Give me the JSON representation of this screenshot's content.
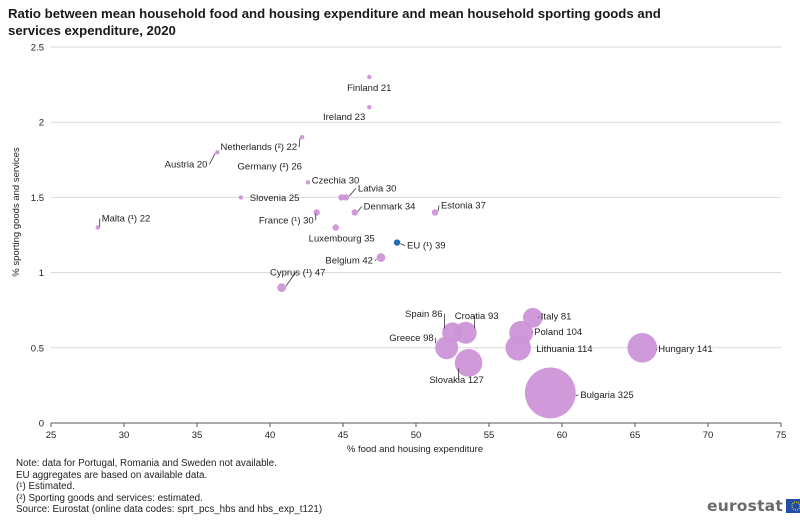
{
  "title": "Ratio between mean household food and housing expenditure and mean household sporting goods and services expenditure, 2020",
  "notes": [
    "Note: data for Portugal, Romania and Sweden not available.",
    "EU aggregates are based on available data.",
    "(¹) Estimated.",
    "(²) Sporting goods and services: estimated.",
    "Source: Eurostat (online data codes: sprt_pcs_hbs and hbs_exp_t121)"
  ],
  "logo_text": "eurostat",
  "colors": {
    "bubble": "#cd94d8",
    "eu": "#1f6cb3",
    "grid": "#d9d9d9",
    "axis": "#555555"
  },
  "chart_data": {
    "type": "scatter",
    "title": "Ratio between mean household food and housing expenditure and mean household sporting goods and services expenditure, 2020",
    "xlabel": "% food and housing expenditure",
    "ylabel": "% sporting goods and services",
    "xlim": [
      25,
      75
    ],
    "ylim": [
      0,
      2.5
    ],
    "xticks": [
      "25",
      "30",
      "35",
      "40",
      "45",
      "50",
      "55",
      "60",
      "65",
      "70",
      "75"
    ],
    "yticks": [
      "0",
      "0.5",
      "1",
      "1.5",
      "2",
      "2.5"
    ],
    "grid": "horizontal",
    "points": [
      {
        "label": "Finland 21",
        "x": 46.8,
        "y": 2.3,
        "ratio": 21
      },
      {
        "label": "Ireland 23",
        "x": 46.8,
        "y": 2.1,
        "ratio": 23
      },
      {
        "label": "Netherlands (²) 22",
        "x": 42.2,
        "y": 1.9,
        "ratio": 22
      },
      {
        "label": "Austria 20",
        "x": 36.4,
        "y": 1.8,
        "ratio": 20
      },
      {
        "label": "Germany (²) 26",
        "x": 42.6,
        "y": 1.6,
        "ratio": 26
      },
      {
        "label": "Czechia 30",
        "x": 44.9,
        "y": 1.5,
        "ratio": 30
      },
      {
        "label": "Latvia 30",
        "x": 45.2,
        "y": 1.5,
        "ratio": 30
      },
      {
        "label": "Slovenia 25",
        "x": 38.0,
        "y": 1.5,
        "ratio": 25
      },
      {
        "label": "Estonia 37",
        "x": 51.3,
        "y": 1.4,
        "ratio": 37
      },
      {
        "label": "Denmark 34",
        "x": 45.8,
        "y": 1.4,
        "ratio": 34
      },
      {
        "label": "France (¹) 30",
        "x": 43.2,
        "y": 1.4,
        "ratio": 30
      },
      {
        "label": "Malta (¹) 22",
        "x": 28.2,
        "y": 1.3,
        "ratio": 22
      },
      {
        "label": "Luxembourg 35",
        "x": 44.5,
        "y": 1.3,
        "ratio": 35
      },
      {
        "label": "EU (¹) 39",
        "x": 48.7,
        "y": 1.2,
        "ratio": 39,
        "eu": true
      },
      {
        "label": "Belgium 42",
        "x": 47.6,
        "y": 1.1,
        "ratio": 42
      },
      {
        "label": "Cyprus (¹) 47",
        "x": 40.8,
        "y": 0.9,
        "ratio": 47
      },
      {
        "label": "Italy 81",
        "x": 58.0,
        "y": 0.7,
        "ratio": 81
      },
      {
        "label": "Croatia 93",
        "x": 53.4,
        "y": 0.6,
        "ratio": 93
      },
      {
        "label": "Spain 86",
        "x": 52.5,
        "y": 0.6,
        "ratio": 86
      },
      {
        "label": "Poland 104",
        "x": 57.2,
        "y": 0.6,
        "ratio": 104
      },
      {
        "label": "Greece 98",
        "x": 52.1,
        "y": 0.5,
        "ratio": 98
      },
      {
        "label": "Lithuania 114",
        "x": 57.0,
        "y": 0.5,
        "ratio": 114
      },
      {
        "label": "Hungary 141",
        "x": 65.5,
        "y": 0.5,
        "ratio": 141
      },
      {
        "label": "Slovakia 127",
        "x": 53.6,
        "y": 0.4,
        "ratio": 127
      },
      {
        "label": "Bulgaria 325",
        "x": 59.2,
        "y": 0.2,
        "ratio": 325
      }
    ]
  }
}
